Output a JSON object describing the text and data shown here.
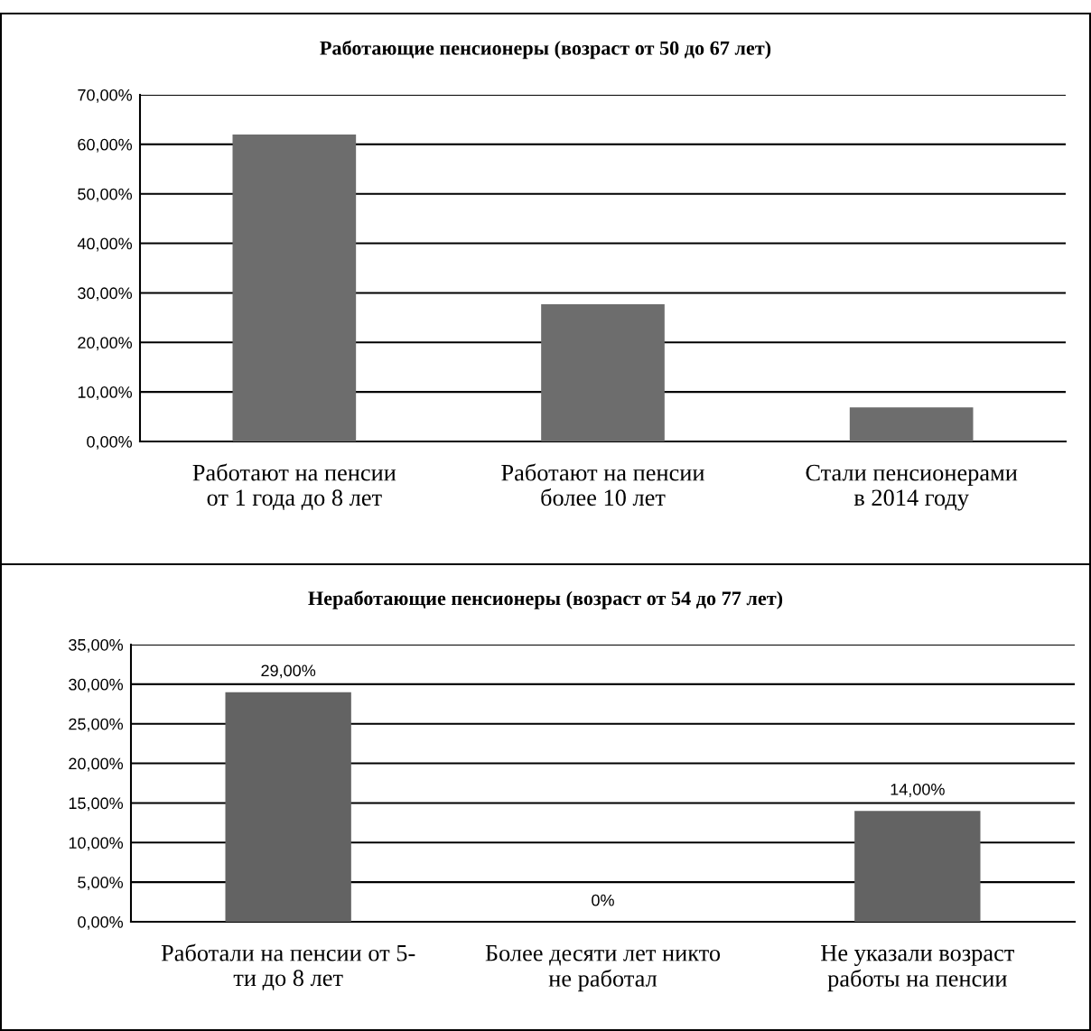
{
  "chart_data": [
    {
      "type": "bar",
      "title": "Работающие пенсионеры (возраст от 50 до 67 лет)",
      "categories": [
        "Работают на пенсии\nот 1 года до 8 лет",
        "Работают на пенсии\nболее 10 лет",
        "Стали пенсионерами\nв 2014 году"
      ],
      "values": [
        62.0,
        27.7,
        6.9
      ],
      "color": "#6d6d6d",
      "ylim": [
        0,
        70
      ],
      "yticks": [
        {
          "value": 0,
          "label": "0,00%"
        },
        {
          "value": 10,
          "label": "10,00%"
        },
        {
          "value": 20,
          "label": "20,00%"
        },
        {
          "value": 30,
          "label": "30,00%"
        },
        {
          "value": 40,
          "label": "40,00%"
        },
        {
          "value": 50,
          "label": "50,00%"
        },
        {
          "value": 60,
          "label": "60,00%"
        },
        {
          "value": 70,
          "label": "70,00%"
        }
      ],
      "grid": "y",
      "legend": false
    },
    {
      "type": "bar",
      "title": "Неработающие пенсионеры (возраст от 54 до 77 лет)",
      "categories": [
        "Работали на пенсии от 5-\nти до 8 лет",
        "Более десяти лет никто\nне работал",
        "Не указали возраст\nработы на пенсии"
      ],
      "values": [
        29,
        0,
        14
      ],
      "value_labels": [
        "29,00%",
        "0%",
        "14,00%"
      ],
      "color": "#636363",
      "ylim": [
        0,
        35
      ],
      "yticks": [
        {
          "value": 0,
          "label": "0,00%"
        },
        {
          "value": 5,
          "label": "5,00%"
        },
        {
          "value": 10,
          "label": "10,00%"
        },
        {
          "value": 15,
          "label": "15,00%"
        },
        {
          "value": 20,
          "label": "20,00%"
        },
        {
          "value": 25,
          "label": "25,00%"
        },
        {
          "value": 30,
          "label": "30,00%"
        },
        {
          "value": 35,
          "label": "35,00%"
        }
      ],
      "grid": "y",
      "legend": false
    }
  ]
}
